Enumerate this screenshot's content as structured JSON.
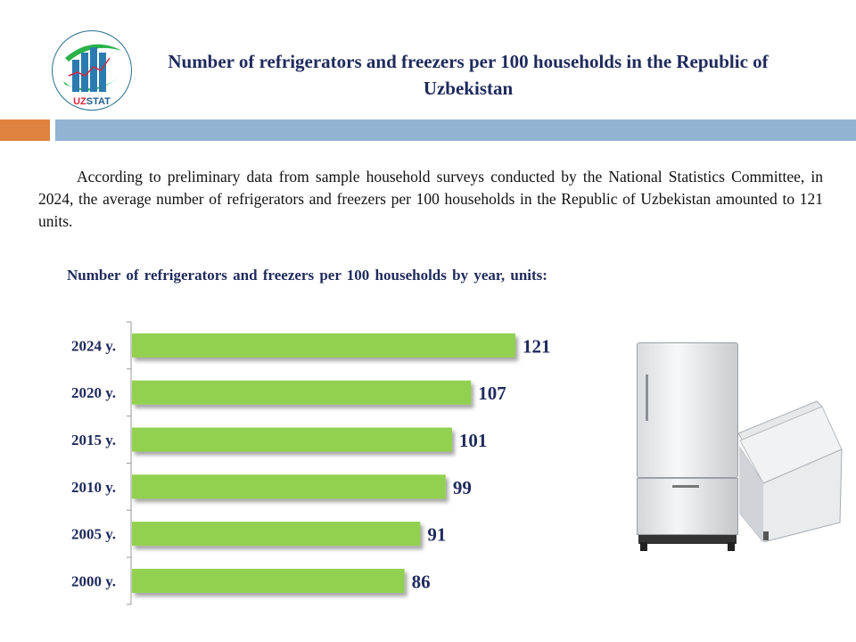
{
  "header": {
    "title": "Number of refrigerators and freezers per 100 households in the Republic of Uzbekistan",
    "logo_text": "UZSTAT"
  },
  "body": {
    "paragraph": "According to preliminary data from sample household surveys conducted by the National Statistics Committee, in 2024, the average number of refrigerators and freezers per 100 households in the Republic of Uzbekistan  amounted to 121 units."
  },
  "colors": {
    "bar": "#92d050",
    "label": "#1f2a5c",
    "accent_orange": "#e0823f",
    "accent_blue": "#93b3d3"
  },
  "chart_data": {
    "type": "bar",
    "orientation": "horizontal",
    "title": "Number  of refrigerators  and freezers per 100 households  by year, units:",
    "categories": [
      "2024 y.",
      "2020 y.",
      "2015 y.",
      "2010 y.",
      "2005 y.",
      "2000 y."
    ],
    "values": [
      121,
      107,
      101,
      99,
      91,
      86
    ],
    "xlim": [
      0,
      121
    ],
    "grid": false,
    "data_labels": true
  }
}
